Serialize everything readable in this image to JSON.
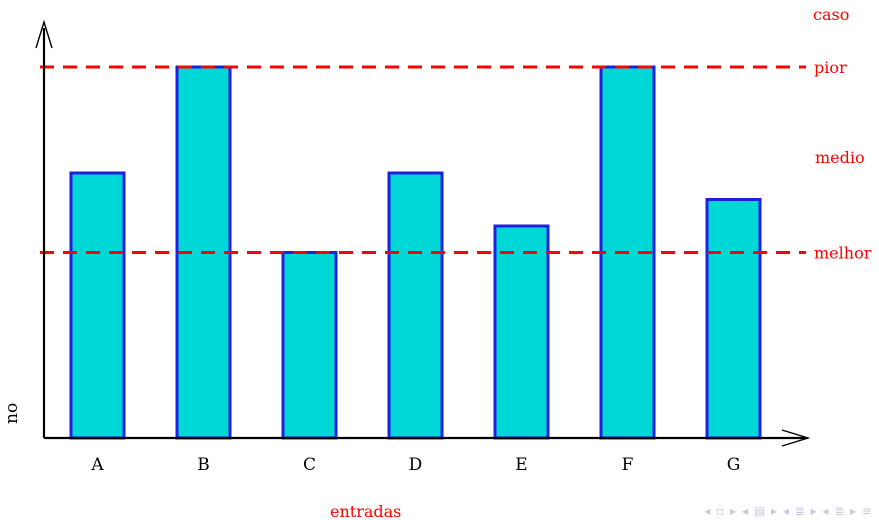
{
  "chart_data": {
    "type": "bar",
    "categories": [
      "A",
      "B",
      "C",
      "D",
      "E",
      "F",
      "G"
    ],
    "values": [
      5,
      7,
      3.5,
      5,
      4,
      7,
      4.5
    ],
    "ylim": [
      0,
      8
    ],
    "xlabel": "entradas",
    "ylabel": "no",
    "legend_title": "caso",
    "reference_lines": [
      {
        "label": "pior",
        "value": 7
      },
      {
        "label": "melhor",
        "value": 3.5
      }
    ],
    "annotations": [
      {
        "label": "medio",
        "value": 5.3
      }
    ],
    "grid": false,
    "colors": {
      "bar_fill": "#00d8d8",
      "bar_stroke": "#1f1fdf",
      "reference_line": "#ff0000",
      "axis": "#000000",
      "label_text": "#ff0000"
    }
  },
  "icons": [
    "navigation-controls-icon"
  ]
}
